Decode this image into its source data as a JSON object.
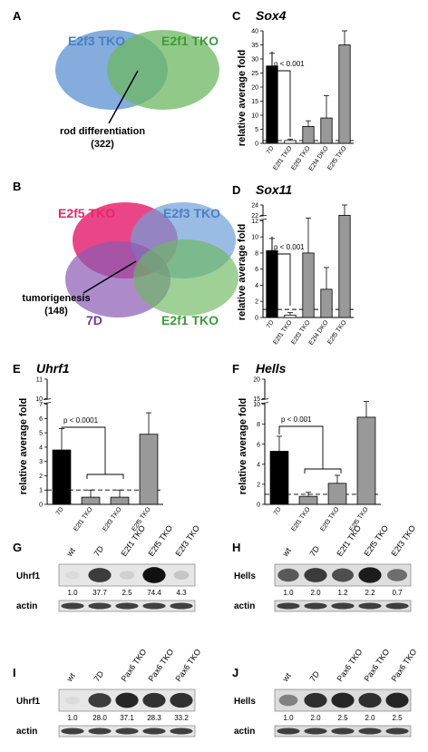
{
  "panels": {
    "A": {
      "label": "A",
      "set1": "E2f3 TKO",
      "set2": "E2f1 TKO",
      "note": "rod differentiation",
      "count": "(322)"
    },
    "B": {
      "label": "B",
      "set1": "E2f5 TKO",
      "set2": "E2f3 TKO",
      "set3": "7D",
      "set4": "E2f1 TKO",
      "note": "tumorigenesis",
      "count": "(148)"
    },
    "C": {
      "label": "C",
      "title": "Sox4",
      "ylabel": "relative average fold",
      "pvalue": "p < 0.001"
    },
    "D": {
      "label": "D",
      "title": "Sox11",
      "ylabel": "relative average fold",
      "pvalue": "p < 0.001"
    },
    "E": {
      "label": "E",
      "title": "Uhrf1",
      "ylabel": "relative average fold",
      "pvalue": "p < 0.0001"
    },
    "F": {
      "label": "F",
      "title": "Hells",
      "ylabel": "relative average fold",
      "pvalue": "p < 0.001"
    },
    "G": {
      "label": "G",
      "lanes": [
        "wt",
        "7D",
        "E2f1 TKO",
        "E2f5 TKO",
        "E2f3 TKO"
      ],
      "protein": "Uhrf1",
      "values": [
        "1.0",
        "37.7",
        "2.5",
        "74.4",
        "4.3"
      ],
      "loading": "actin"
    },
    "H": {
      "label": "H",
      "lanes": [
        "wt",
        "7D",
        "E2f1 TKO",
        "E2f5 TKO",
        "E2f3 TKO"
      ],
      "protein": "Hells",
      "values": [
        "1.0",
        "2.0",
        "1.2",
        "2.2",
        "0.7"
      ],
      "loading": "actin"
    },
    "I": {
      "label": "I",
      "lanes": [
        "wt",
        "7D",
        "Pax6 TKO",
        "Pax6 TKO",
        "Pax6 TKO"
      ],
      "protein": "Uhrf1",
      "values": [
        "1.0",
        "28.0",
        "37.1",
        "28.3",
        "33.2"
      ],
      "loading": "actin"
    },
    "J": {
      "label": "J",
      "lanes": [
        "wt",
        "7D",
        "Pax6 TKO",
        "Pax6 TKO",
        "Pax6 TKO"
      ],
      "protein": "Hells",
      "values": [
        "1.0",
        "2.0",
        "2.5",
        "2.0",
        "2.5"
      ],
      "loading": "actin"
    }
  },
  "chart_data": [
    {
      "type": "bar",
      "title": "Sox4",
      "ylabel": "relative average fold",
      "categories": [
        "7D",
        "E2f1 TKO",
        "E2f3 TKO",
        "E2f4 DKO",
        "E2f5 TKO"
      ],
      "values": [
        27.5,
        1,
        6,
        9,
        35
      ],
      "errors": [
        4.5,
        0.5,
        2,
        8,
        5
      ],
      "ylim": [
        0,
        40
      ],
      "yticks": [
        "0",
        "5",
        "10",
        "15",
        "20",
        "25",
        "30",
        "35",
        "40"
      ],
      "baseline": 1,
      "colors": [
        "#000000",
        "#ffffff",
        "#999999",
        "#999999",
        "#999999"
      ]
    },
    {
      "type": "bar",
      "title": "Sox11",
      "ylabel": "relative average fold",
      "categories": [
        "7D",
        "E2f1 TKO",
        "E2f3 TKO",
        "E2f4 DKO",
        "E2f5 TKO"
      ],
      "values": [
        8.3,
        0.3,
        8,
        3.5,
        22
      ],
      "errors": [
        1.5,
        0.3,
        4.5,
        2.7,
        2
      ],
      "ylim": [
        0,
        24
      ],
      "yticks": [
        "0",
        "2",
        "4",
        "6",
        "8",
        "10",
        "12",
        "22",
        "24"
      ],
      "axis_break": [
        12,
        22
      ],
      "baseline": 1,
      "colors": [
        "#000000",
        "#ffffff",
        "#999999",
        "#999999",
        "#999999"
      ]
    },
    {
      "type": "bar",
      "title": "Uhrf1",
      "ylabel": "relative average fold",
      "categories": [
        "7D",
        "E2f1 TKO",
        "E2f3 TKO",
        "E2f5 TKO"
      ],
      "values": [
        3.8,
        0.5,
        0.5,
        4.9
      ],
      "errors": [
        1.5,
        0.5,
        0.5,
        1.5
      ],
      "ylim": [
        0,
        11
      ],
      "yticks": [
        "0",
        "1",
        "2",
        "3",
        "4",
        "5",
        "6",
        "7",
        "10",
        "11"
      ],
      "axis_break": [
        7,
        10
      ],
      "baseline": 1,
      "colors": [
        "#000000",
        "#999999",
        "#999999",
        "#999999"
      ]
    },
    {
      "type": "bar",
      "title": "Hells",
      "ylabel": "relative average fold",
      "categories": [
        "7D",
        "E2f1 TKO",
        "E2f3 TKO",
        "E2f5 TKO"
      ],
      "values": [
        5.3,
        0.8,
        2.1,
        8.7
      ],
      "errors": [
        1.5,
        0.4,
        0.8,
        1.5
      ],
      "ylim": [
        0,
        20
      ],
      "yticks": [
        "0",
        "2",
        "4",
        "6",
        "8",
        "10",
        "15",
        "20"
      ],
      "axis_break": [
        10,
        15
      ],
      "baseline": 1,
      "colors": [
        "#000000",
        "#999999",
        "#999999",
        "#999999"
      ]
    }
  ]
}
